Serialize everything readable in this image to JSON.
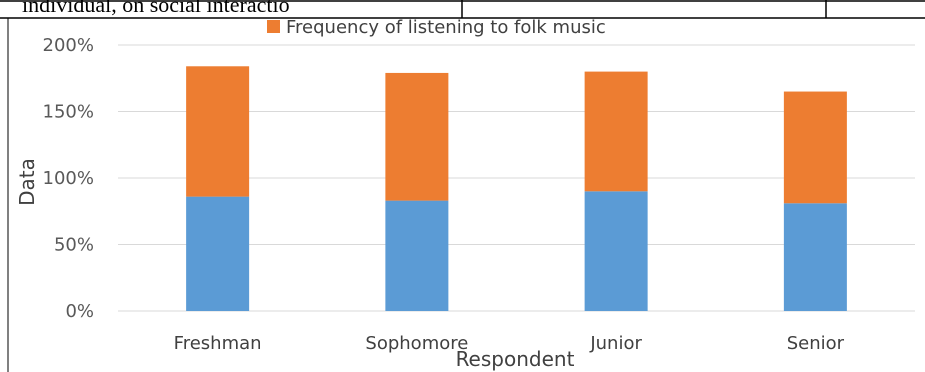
{
  "top_fragment": {
    "left_text": "individual, on social interactio"
  },
  "chart_data": {
    "type": "bar",
    "stacked": true,
    "categories": [
      "Freshman",
      "Sophomore",
      "Junior",
      "Senior"
    ],
    "series": [
      {
        "name": "",
        "color": "#5B9BD5",
        "values": [
          86,
          83,
          90,
          81
        ]
      },
      {
        "name": "Frequency of listening to folk music",
        "color": "#ED7D31",
        "values": [
          98,
          96,
          90,
          84
        ]
      }
    ],
    "title": "",
    "xlabel": "Respondent",
    "ylabel": "Data",
    "ylim": [
      0,
      200
    ],
    "yticks": [
      0,
      50,
      100,
      150,
      200
    ],
    "ytick_labels": [
      "0%",
      "50%",
      "100%",
      "150%",
      "200%"
    ],
    "grid": true,
    "legend_position": "top"
  }
}
